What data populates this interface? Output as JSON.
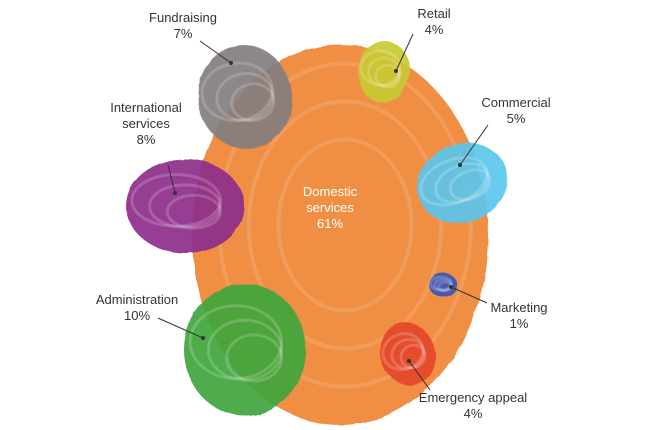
{
  "chart_data": {
    "type": "bubble",
    "title": "",
    "unit": "%",
    "center": {
      "name_lines": [
        "Domestic",
        "services"
      ],
      "value_label": "61%",
      "value": 61,
      "color": "#F08A3A"
    },
    "items": [
      {
        "id": "fundraising",
        "name_lines": [
          "Fundraising"
        ],
        "value_label": "7%",
        "value": 7,
        "color": "#847D7D"
      },
      {
        "id": "retail",
        "name_lines": [
          "Retail"
        ],
        "value_label": "4%",
        "value": 4,
        "color": "#C9C930"
      },
      {
        "id": "international",
        "name_lines": [
          "International",
          "services"
        ],
        "value_label": "8%",
        "value": 8,
        "color": "#8E2E8C"
      },
      {
        "id": "commercial",
        "name_lines": [
          "Commercial"
        ],
        "value_label": "5%",
        "value": 5,
        "color": "#5CC6EC"
      },
      {
        "id": "marketing",
        "name_lines": [
          "Marketing"
        ],
        "value_label": "1%",
        "value": 1,
        "color": "#3854B8"
      },
      {
        "id": "administration",
        "name_lines": [
          "Administration"
        ],
        "value_label": "10%",
        "value": 10,
        "color": "#3FA63E"
      },
      {
        "id": "emergency",
        "name_lines": [
          "Emergency appeal"
        ],
        "value_label": "4%",
        "value": 4,
        "color": "#E4462A"
      }
    ]
  }
}
